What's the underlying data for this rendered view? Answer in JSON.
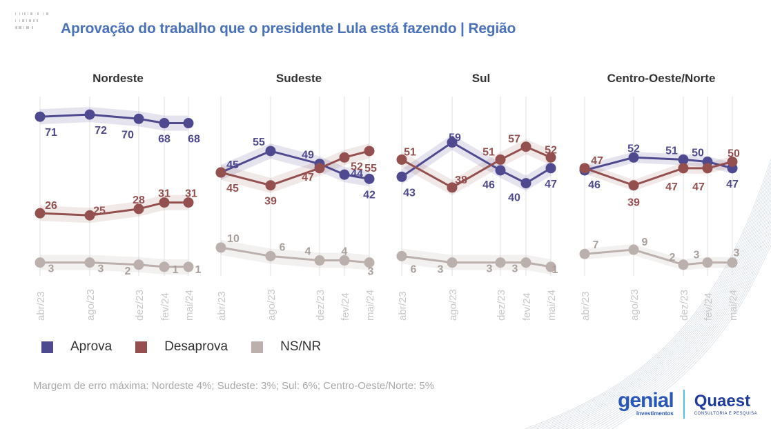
{
  "title": "Aprovação do trabalho que o presidente Lula está fazendo | Região",
  "legend": [
    {
      "label": "Aprova",
      "color": "#4f4a8f"
    },
    {
      "label": "Desaprova",
      "color": "#94504f"
    },
    {
      "label": "NS/NR",
      "color": "#bbb0ab"
    }
  ],
  "note": "Margem de erro máxima: Nordeste 4%; Sudeste: 3%; Sul: 6%; Centro-Oeste/Norte: 5%",
  "logos": {
    "genial": "genial",
    "genial_sub": "investimentos",
    "quaest": "Quaest",
    "quaest_sub": "CONSULTORIA E PESQUISA"
  },
  "chart_data": [
    {
      "type": "line",
      "title": "Nordeste",
      "categories": [
        "abr/23",
        "ago/23",
        "dez/23",
        "fev/24",
        "mai/24"
      ],
      "series": [
        {
          "name": "Aprova",
          "values": [
            71,
            72,
            70,
            68,
            68
          ]
        },
        {
          "name": "Desaprova",
          "values": [
            26,
            25,
            28,
            31,
            31
          ]
        },
        {
          "name": "NS/NR",
          "values": [
            3,
            3,
            2,
            1,
            1
          ]
        }
      ],
      "ylim": [
        0,
        75
      ]
    },
    {
      "type": "line",
      "title": "Sudeste",
      "categories": [
        "abr/23",
        "ago/23",
        "dez/23",
        "fev/24",
        "mai/24"
      ],
      "series": [
        {
          "name": "Aprova",
          "values": [
            45,
            55,
            49,
            44,
            42
          ]
        },
        {
          "name": "Desaprova",
          "values": [
            45,
            39,
            47,
            52,
            55
          ]
        },
        {
          "name": "NS/NR",
          "values": [
            10,
            6,
            4,
            4,
            3
          ]
        }
      ],
      "ylim": [
        0,
        75
      ]
    },
    {
      "type": "line",
      "title": "Sul",
      "categories": [
        "abr/23",
        "ago/23",
        "dez/23",
        "fev/24",
        "mai/24"
      ],
      "series": [
        {
          "name": "Aprova",
          "values": [
            43,
            59,
            46,
            40,
            47
          ]
        },
        {
          "name": "Desaprova",
          "values": [
            51,
            38,
            51,
            57,
            52
          ]
        },
        {
          "name": "NS/NR",
          "values": [
            6,
            3,
            3,
            3,
            1
          ]
        }
      ],
      "ylim": [
        0,
        75
      ]
    },
    {
      "type": "line",
      "title": "Centro-Oeste/Norte",
      "categories": [
        "abr/23",
        "ago/23",
        "dez/23",
        "fev/24",
        "mai/24"
      ],
      "series": [
        {
          "name": "Aprova",
          "values": [
            46,
            52,
            51,
            50,
            47
          ]
        },
        {
          "name": "Desaprova",
          "values": [
            47,
            39,
            47,
            47,
            50
          ]
        },
        {
          "name": "NS/NR",
          "values": [
            7,
            9,
            2,
            3,
            3
          ]
        }
      ],
      "ylim": [
        0,
        75
      ]
    }
  ]
}
